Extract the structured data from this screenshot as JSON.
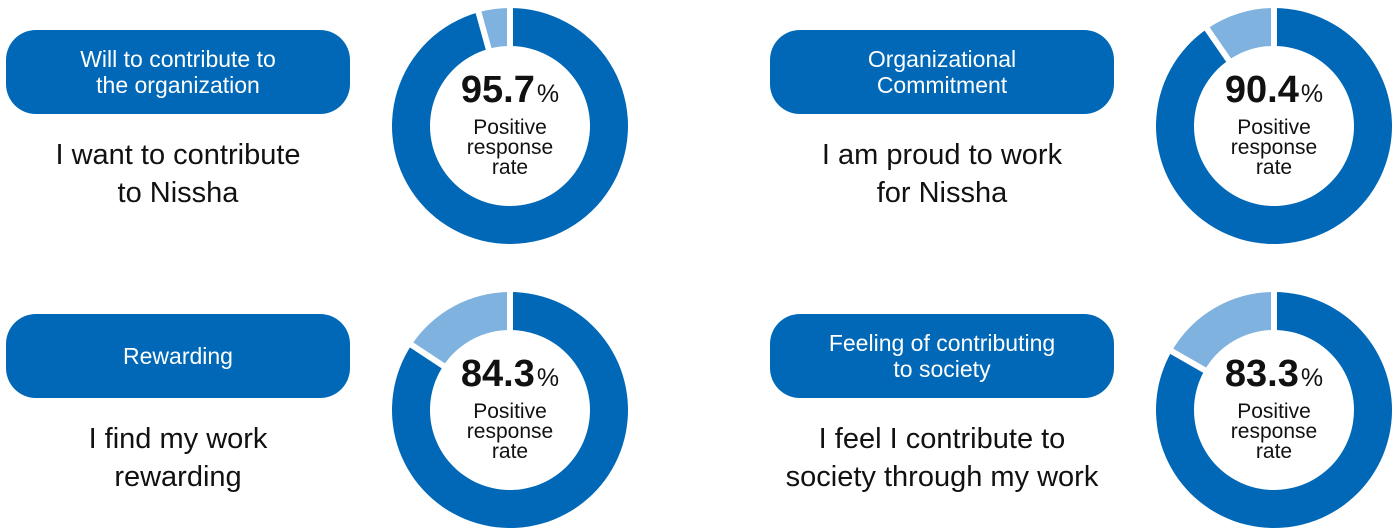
{
  "colors": {
    "primary": "#0068b7",
    "secondary": "#7fb2df",
    "background": "#ffffff",
    "text": "#111111"
  },
  "chart_data": [
    {
      "type": "pie",
      "category": "Will to contribute to\nthe organization",
      "statement": "I want to contribute\nto Nissha",
      "value": 95.7,
      "value_label": "95.7",
      "unit": "%",
      "center_caption": "Positive\nresponse\nrate",
      "slices": [
        {
          "label": "Positive",
          "value": 95.7,
          "color": "#0068b7"
        },
        {
          "label": "Other",
          "value": 4.3,
          "color": "#7fb2df"
        }
      ]
    },
    {
      "type": "pie",
      "category": "Organizational\nCommitment",
      "statement": "I am proud to work\nfor Nissha",
      "value": 90.4,
      "value_label": "90.4",
      "unit": "%",
      "center_caption": "Positive\nresponse\nrate",
      "slices": [
        {
          "label": "Positive",
          "value": 90.4,
          "color": "#0068b7"
        },
        {
          "label": "Other",
          "value": 9.6,
          "color": "#7fb2df"
        }
      ]
    },
    {
      "type": "pie",
      "category": "Rewarding",
      "statement": "I find my work\nrewarding",
      "value": 84.3,
      "value_label": "84.3",
      "unit": "%",
      "center_caption": "Positive\nresponse\nrate",
      "slices": [
        {
          "label": "Positive",
          "value": 84.3,
          "color": "#0068b7"
        },
        {
          "label": "Other",
          "value": 15.7,
          "color": "#7fb2df"
        }
      ]
    },
    {
      "type": "pie",
      "category": "Feeling of contributing\nto society",
      "statement": "I feel I contribute to\nsociety through my work",
      "value": 83.3,
      "value_label": "83.3",
      "unit": "%",
      "center_caption": "Positive\nresponse\nrate",
      "slices": [
        {
          "label": "Positive",
          "value": 83.3,
          "color": "#0068b7"
        },
        {
          "label": "Other",
          "value": 16.7,
          "color": "#7fb2df"
        }
      ]
    }
  ]
}
